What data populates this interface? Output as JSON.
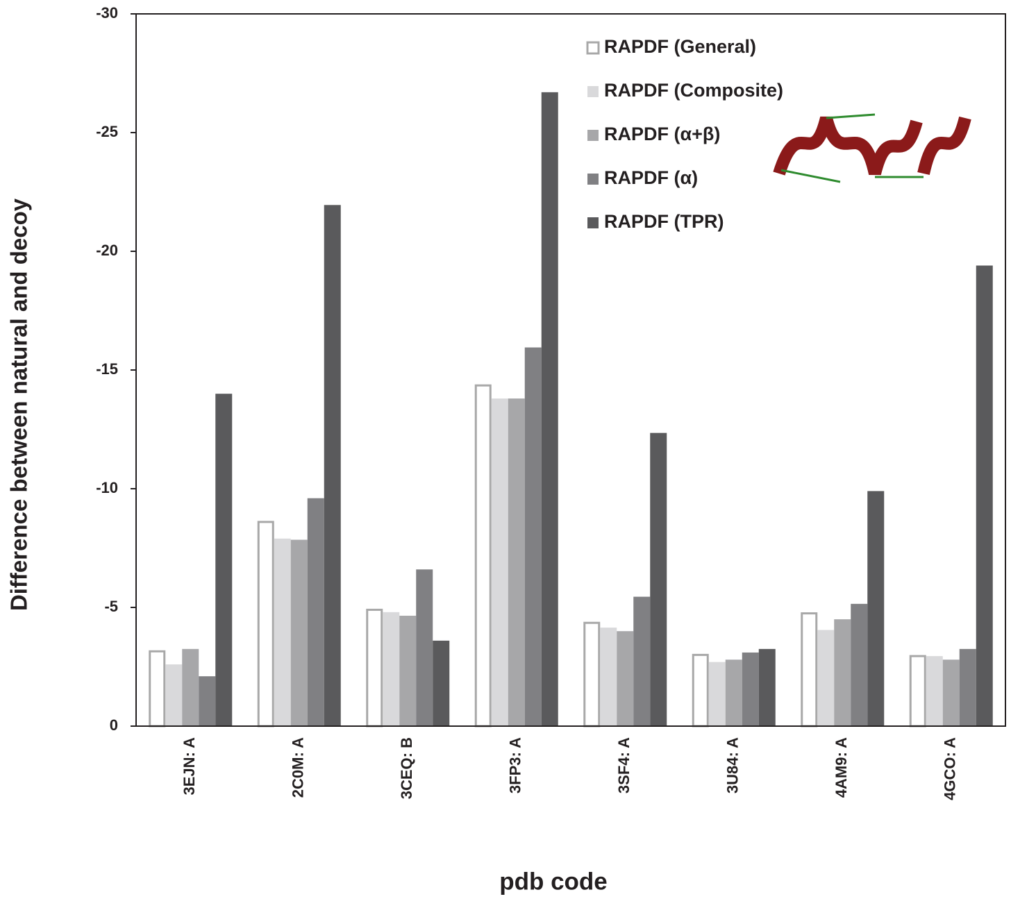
{
  "chart_data": {
    "type": "bar",
    "y_label": "Difference between natural and decoy",
    "x_label": "pdb code",
    "categories": [
      "3EJN: A",
      "2C0M: A",
      "3CEQ: B",
      "3FP3: A",
      "3SF4: A",
      "3U84: A",
      "4AM9: A",
      "4GCO: A"
    ],
    "series": [
      {
        "name": "RAPDF (General)",
        "color": "#ffffff",
        "stroke": "#a8a8a8",
        "values": [
          -3.15,
          -8.6,
          -4.9,
          -14.35,
          -4.35,
          -3.0,
          -4.75,
          -2.95
        ]
      },
      {
        "name": "RAPDF (Composite)",
        "color": "#d9d9db",
        "values": [
          -2.6,
          -7.9,
          -4.8,
          -13.8,
          -4.15,
          -2.7,
          -4.05,
          -2.95
        ]
      },
      {
        "name": "RAPDF (α+β)",
        "color": "#a7a7a9",
        "values": [
          -3.25,
          -7.85,
          -4.65,
          -13.8,
          -4.0,
          -2.8,
          -4.5,
          -2.8
        ]
      },
      {
        "name": "RAPDF (α)",
        "color": "#808083",
        "values": [
          -2.1,
          -9.6,
          -6.6,
          -15.95,
          -5.45,
          -3.1,
          -5.15,
          -3.25
        ]
      },
      {
        "name": "RAPDF (TPR)",
        "color": "#5a5a5c",
        "values": [
          -14.0,
          -21.95,
          -3.6,
          -26.7,
          -12.35,
          -3.25,
          -9.9,
          -19.4
        ]
      }
    ],
    "ylim": [
      0,
      -30
    ],
    "yticks": [
      0,
      -5,
      -10,
      -15,
      -20,
      -25,
      -30
    ],
    "grid": false
  }
}
